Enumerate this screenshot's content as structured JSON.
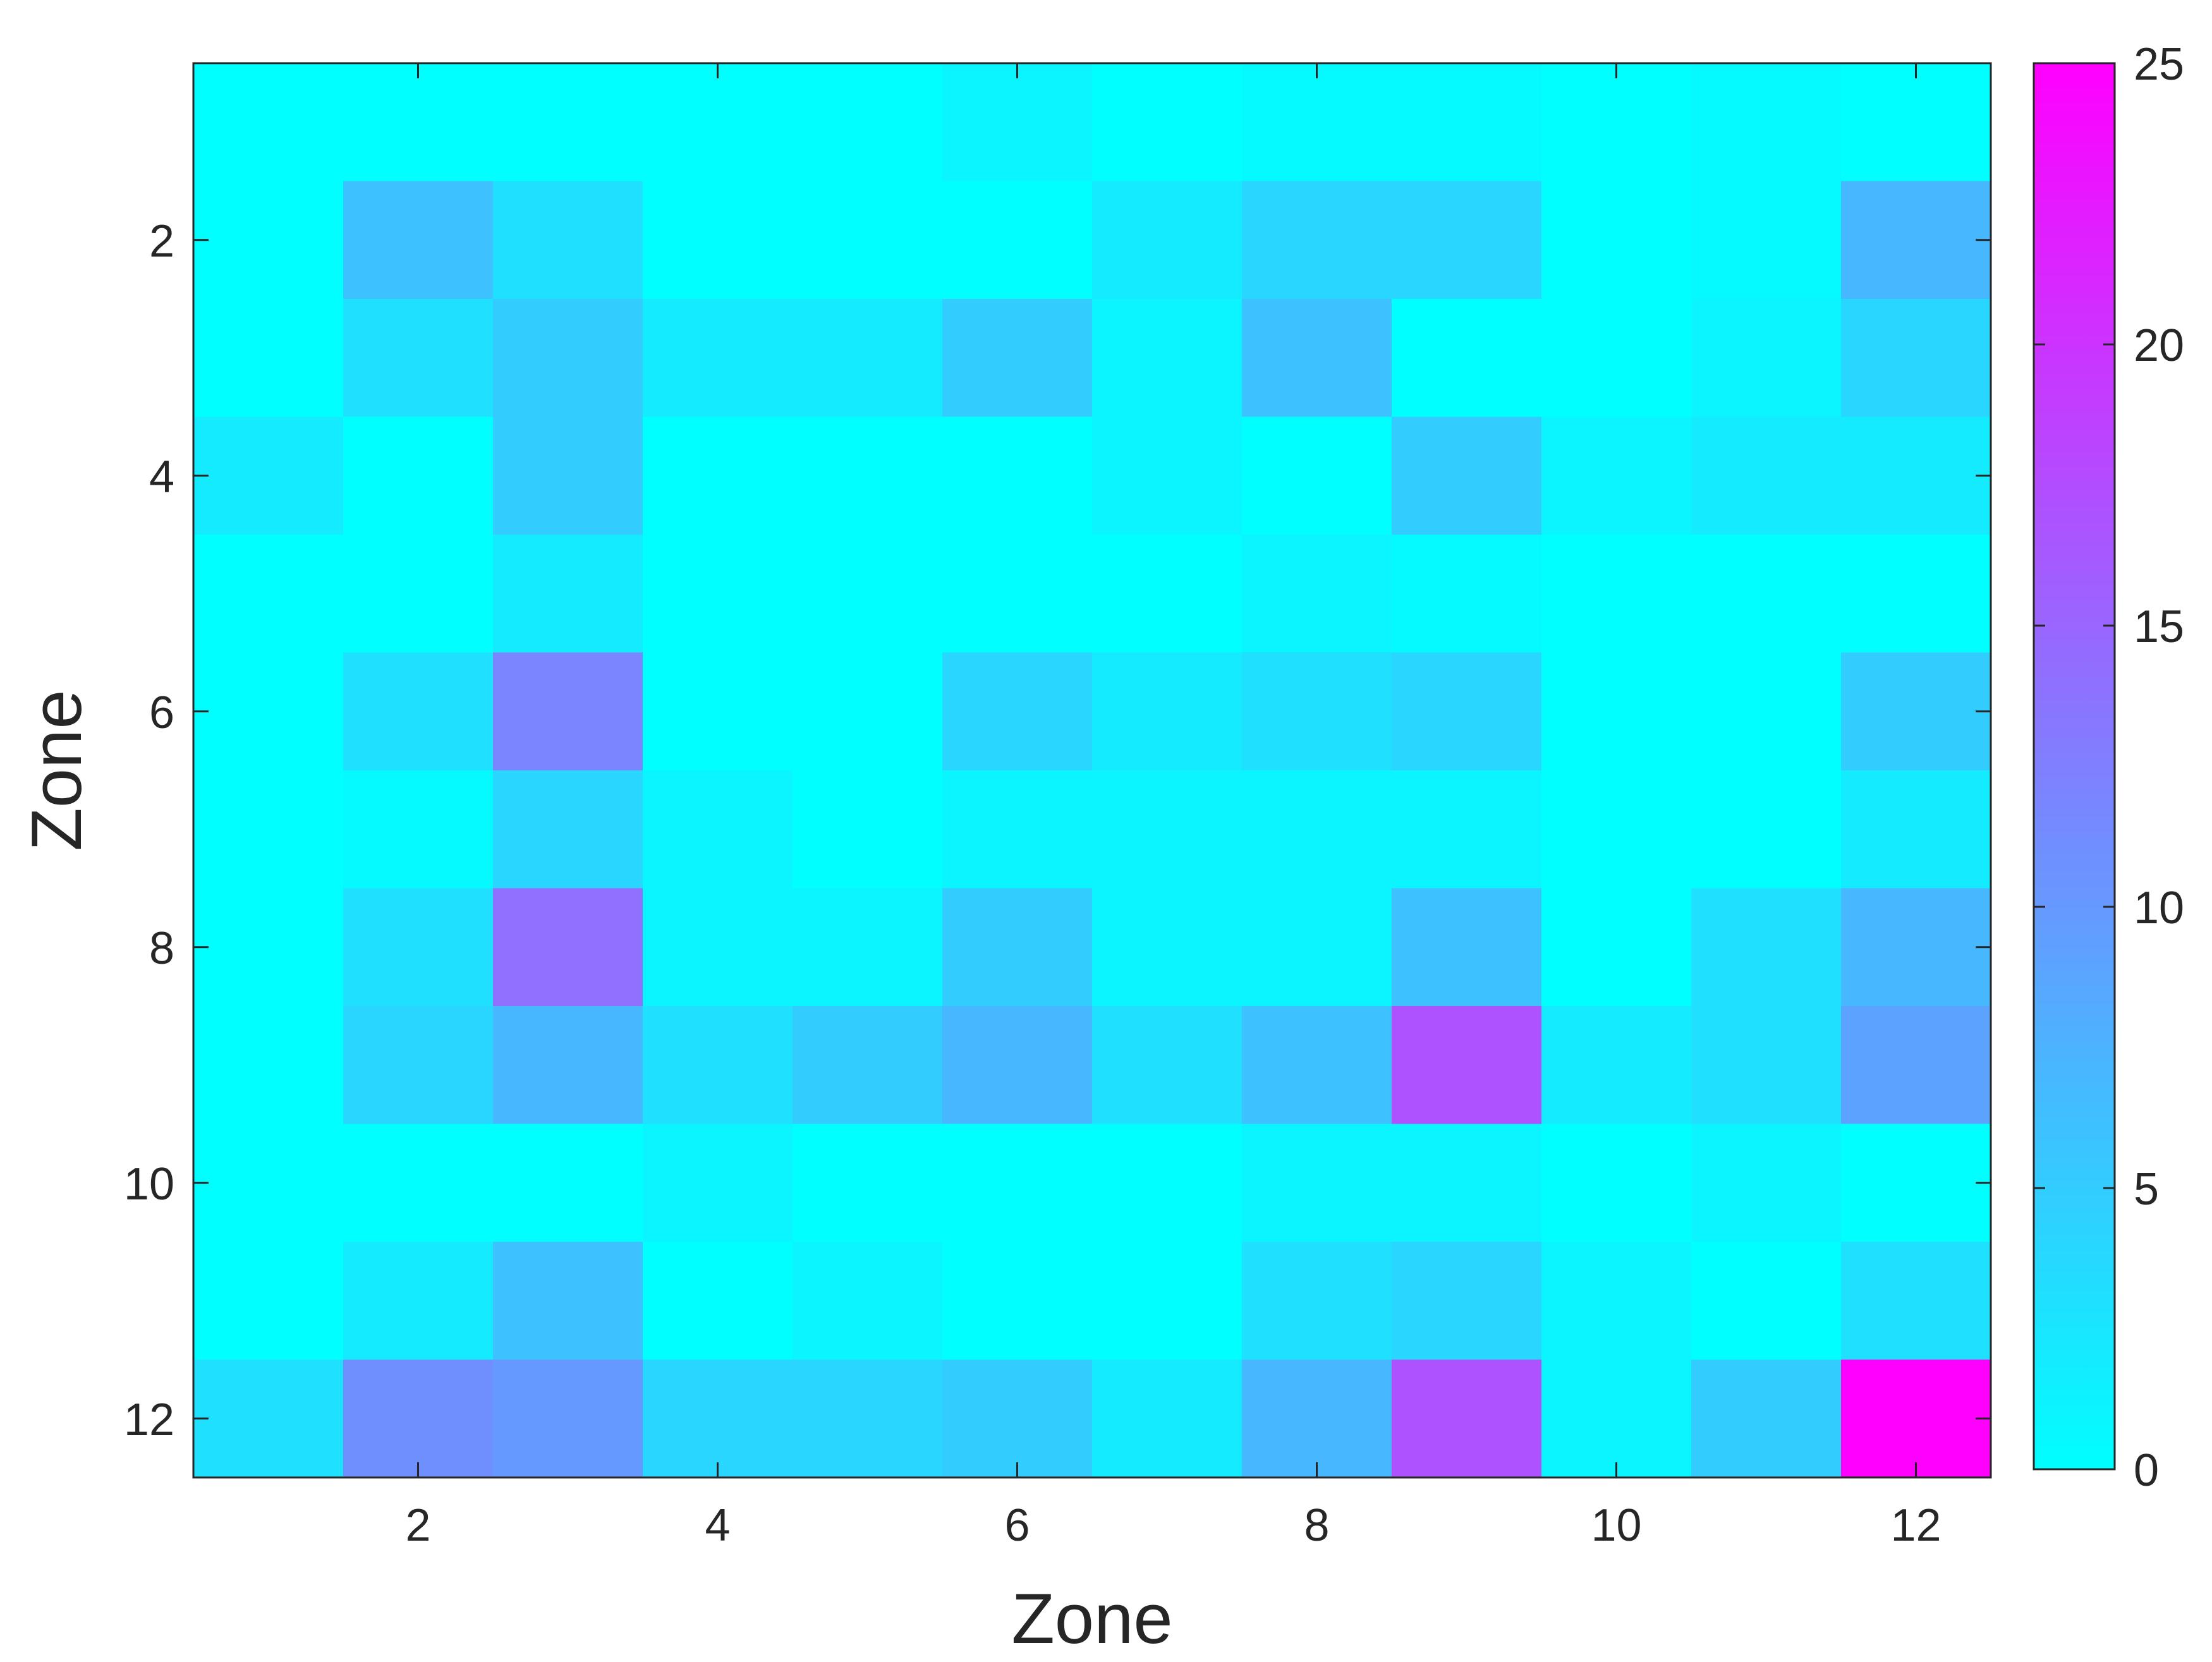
{
  "chart_data": {
    "type": "heatmap",
    "title": "",
    "xlabel": "Zone",
    "ylabel": "Zone",
    "x": [
      1,
      2,
      3,
      4,
      5,
      6,
      7,
      8,
      9,
      10,
      11,
      12
    ],
    "y": [
      1,
      2,
      3,
      4,
      5,
      6,
      7,
      8,
      9,
      10,
      11,
      12
    ],
    "xlim": [
      0.5,
      12.5
    ],
    "ylim": [
      0.5,
      12.5
    ],
    "y_reversed": true,
    "x_ticks": [
      2,
      4,
      6,
      8,
      10,
      12
    ],
    "y_ticks": [
      2,
      4,
      6,
      8,
      10,
      12
    ],
    "grid": false,
    "colorbar": {
      "location": "right",
      "range": [
        0,
        25
      ],
      "ticks": [
        0,
        5,
        10,
        15,
        20,
        25
      ],
      "colormap": "cool",
      "color_low": "#00ffff",
      "color_high": "#ff00ff"
    },
    "values": [
      [
        0,
        0,
        0,
        0,
        0,
        1,
        0,
        0.5,
        0.5,
        0,
        0.5,
        0
      ],
      [
        0,
        6,
        3,
        0,
        0,
        0,
        2,
        4,
        4,
        0,
        0.5,
        7
      ],
      [
        0,
        3,
        5,
        2,
        2,
        5,
        1,
        6,
        0,
        0,
        1,
        4
      ],
      [
        2,
        0,
        5,
        0,
        0,
        0,
        1,
        0,
        5,
        1,
        2,
        2
      ],
      [
        0,
        0,
        2,
        0,
        0,
        0,
        0,
        1,
        0.5,
        0,
        0,
        0
      ],
      [
        0,
        3,
        12,
        0,
        0,
        4,
        2,
        3,
        4,
        0,
        0,
        5
      ],
      [
        0,
        0.5,
        4,
        1,
        0,
        1,
        1,
        1,
        1,
        0,
        0,
        2
      ],
      [
        0,
        3,
        14,
        1,
        1,
        5,
        1,
        1,
        6,
        0,
        3,
        7
      ],
      [
        0,
        4,
        7,
        3,
        5,
        7,
        3,
        6,
        17,
        2,
        3,
        9
      ],
      [
        0,
        0,
        0,
        1,
        0,
        0,
        0,
        1,
        1,
        0,
        1,
        0
      ],
      [
        0,
        2,
        6,
        0,
        1,
        0,
        0,
        3,
        4,
        1,
        0,
        3
      ],
      [
        3,
        11,
        10,
        4,
        4,
        5,
        2,
        7,
        17,
        1,
        5,
        25
      ]
    ]
  }
}
